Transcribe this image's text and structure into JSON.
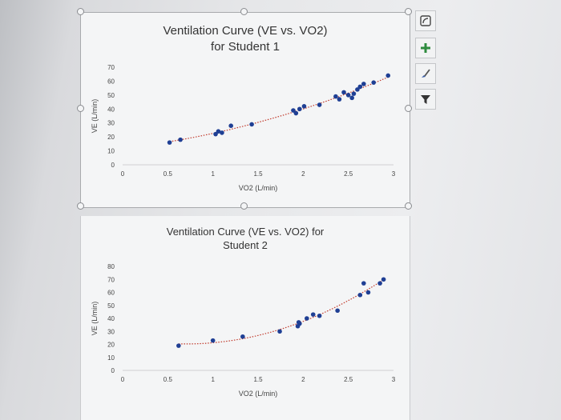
{
  "chart_data": [
    {
      "type": "scatter",
      "title": "Ventilation Curve (VE vs. VO2) for Student 1",
      "xlabel": "VO2 (L/min)",
      "ylabel": "VE (L/min)",
      "xlim": [
        0,
        3
      ],
      "ylim": [
        0,
        70
      ],
      "xticks": [
        "0",
        "0.5",
        "1",
        "1.5",
        "2",
        "2.5",
        "3"
      ],
      "yticks": [
        "0",
        "10",
        "20",
        "30",
        "40",
        "50",
        "60",
        "70"
      ],
      "trendline": "dotted",
      "colors": {
        "points": "#1f3f94",
        "trendline": "#c0392b"
      },
      "series": [
        {
          "x": [
            0.52,
            0.64,
            1.03,
            1.06,
            1.1,
            1.2,
            1.43,
            1.89,
            1.92,
            1.96,
            2.01,
            2.18,
            2.36,
            2.4,
            2.45,
            2.5,
            2.54,
            2.56,
            2.6,
            2.63,
            2.67,
            2.78,
            2.94
          ],
          "y": [
            16,
            18,
            22,
            24,
            23,
            28,
            29,
            39,
            37,
            40,
            42,
            43,
            49,
            47,
            52,
            50,
            48,
            51,
            54,
            56,
            58,
            59,
            64
          ]
        }
      ]
    },
    {
      "type": "scatter",
      "title": "Ventilation Curve (VE vs. VO2) for Student 2",
      "xlabel": "VO2 (L/min)",
      "ylabel": "VE (L/min)",
      "xlim": [
        0,
        3
      ],
      "ylim": [
        0,
        80
      ],
      "xticks": [
        "0",
        "0.5",
        "1",
        "1.5",
        "2",
        "2.5",
        "3"
      ],
      "yticks": [
        "0",
        "10",
        "20",
        "30",
        "40",
        "50",
        "60",
        "70",
        "80"
      ],
      "trendline": "dotted",
      "colors": {
        "points": "#1f3f94",
        "trendline": "#c0392b"
      },
      "series": [
        {
          "x": [
            0.62,
            1.0,
            1.33,
            1.74,
            1.94,
            1.95,
            1.96,
            2.04,
            2.11,
            2.18,
            2.38,
            2.63,
            2.67,
            2.72,
            2.85,
            2.89
          ],
          "y": [
            19,
            23,
            26,
            30,
            34,
            37,
            36,
            40,
            43,
            42,
            46,
            58,
            67,
            60,
            67,
            70
          ]
        }
      ]
    }
  ],
  "toolbar": {
    "icons": [
      "chart-layout-icon",
      "plus-icon",
      "brush-icon",
      "filter-icon"
    ],
    "accent": "#2e8b3e"
  }
}
